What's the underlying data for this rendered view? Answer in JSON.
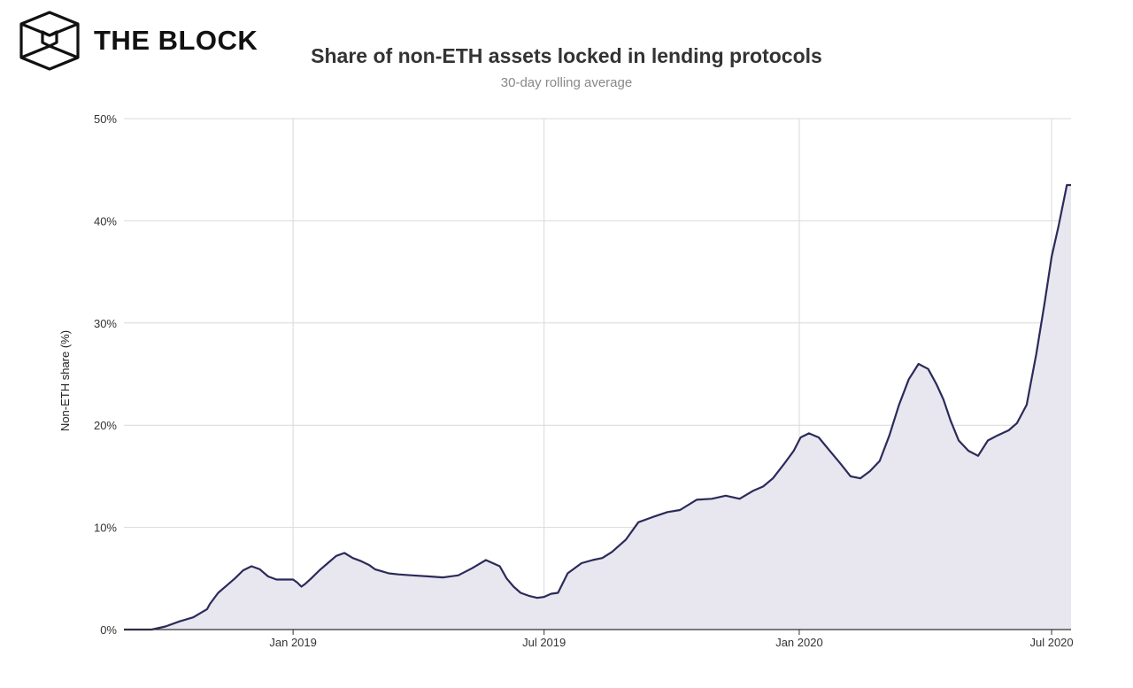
{
  "brand": {
    "name": "THE BLOCK"
  },
  "colors": {
    "line": "#2b2a5a",
    "area": "#e8e7ef",
    "grid": "#d9d9d9",
    "axis": "#333333"
  },
  "chart_data": {
    "type": "area",
    "title": "Share of non-ETH assets locked in lending protocols",
    "subtitle": "30-day rolling average",
    "ylabel": "Non-ETH share (%)",
    "xlabel": "",
    "ylim": [
      0,
      50
    ],
    "yticks": [
      0,
      10,
      20,
      30,
      40,
      50
    ],
    "ytick_labels": [
      "0%",
      "10%",
      "20%",
      "30%",
      "40%",
      "50%"
    ],
    "xticks": [
      "2019-01-01",
      "2019-07-01",
      "2020-01-01",
      "2020-07-01"
    ],
    "xtick_labels": [
      "Jan 2019",
      "Jul 2019",
      "Jan 2020",
      "Jul 2020"
    ],
    "xlim": [
      "2018-09-01",
      "2020-07-15"
    ],
    "grid": true,
    "legend": "none",
    "series": [
      {
        "x": [
          "2018-09-01",
          "2018-09-21",
          "2018-10-01",
          "2018-10-11",
          "2018-10-21",
          "2018-10-31",
          "2018-11-02",
          "2018-11-08",
          "2018-11-14",
          "2018-11-20",
          "2018-11-26",
          "2018-12-02",
          "2018-12-08",
          "2018-12-14",
          "2018-12-20",
          "2018-12-26",
          "2019-01-01",
          "2019-01-04",
          "2019-01-07",
          "2019-01-10",
          "2019-01-14",
          "2019-01-20",
          "2019-01-26",
          "2019-02-01",
          "2019-02-07",
          "2019-02-13",
          "2019-02-19",
          "2019-02-25",
          "2019-03-01",
          "2019-03-06",
          "2019-03-11",
          "2019-03-18",
          "2019-03-28",
          "2019-04-09",
          "2019-04-19",
          "2019-04-30",
          "2019-05-10",
          "2019-05-20",
          "2019-05-30",
          "2019-06-04",
          "2019-06-09",
          "2019-06-14",
          "2019-06-20",
          "2019-06-26",
          "2019-07-01",
          "2019-07-06",
          "2019-07-11",
          "2019-07-18",
          "2019-07-28",
          "2019-08-05",
          "2019-08-12",
          "2019-08-19",
          "2019-08-29",
          "2019-09-07",
          "2019-09-17",
          "2019-09-28",
          "2019-10-07",
          "2019-10-19",
          "2019-10-30",
          "2019-11-09",
          "2019-11-19",
          "2019-11-29",
          "2019-12-06",
          "2019-12-13",
          "2019-12-21",
          "2019-12-28",
          "2020-01-02",
          "2020-01-08",
          "2020-01-15",
          "2020-01-23",
          "2020-01-31",
          "2020-02-07",
          "2020-02-14",
          "2020-02-21",
          "2020-02-28",
          "2020-03-06",
          "2020-03-13",
          "2020-03-20",
          "2020-03-27",
          "2020-04-03",
          "2020-04-09",
          "2020-04-14",
          "2020-04-19",
          "2020-04-25",
          "2020-05-02",
          "2020-05-09",
          "2020-05-16",
          "2020-05-23",
          "2020-05-31",
          "2020-06-06",
          "2020-06-13",
          "2020-06-20",
          "2020-06-26",
          "2020-07-01",
          "2020-07-06",
          "2020-07-09",
          "2020-07-12",
          "2020-07-15"
        ],
        "y": [
          0,
          0,
          0.3,
          0.8,
          1.2,
          2.0,
          2.5,
          3.6,
          4.3,
          5.0,
          5.8,
          6.2,
          5.9,
          5.2,
          4.9,
          4.9,
          4.9,
          4.6,
          4.2,
          4.5,
          5.0,
          5.8,
          6.5,
          7.2,
          7.5,
          7.0,
          6.7,
          6.3,
          5.9,
          5.7,
          5.5,
          5.4,
          5.3,
          5.2,
          5.1,
          5.3,
          6.0,
          6.8,
          6.2,
          5.0,
          4.2,
          3.6,
          3.3,
          3.1,
          3.2,
          3.5,
          3.6,
          5.5,
          6.5,
          6.8,
          7.0,
          7.6,
          8.8,
          10.5,
          11.0,
          11.5,
          11.7,
          12.7,
          12.8,
          13.1,
          12.8,
          13.6,
          14.0,
          14.8,
          16.2,
          17.5,
          18.8,
          19.2,
          18.8,
          17.5,
          16.2,
          15.0,
          14.8,
          15.5,
          16.5,
          19.0,
          22.0,
          24.5,
          26.0,
          25.5,
          24.0,
          22.5,
          20.5,
          18.5,
          17.5,
          17.0,
          18.5,
          19.0,
          19.5,
          20.2,
          22.0,
          27.0,
          32.0,
          36.5,
          39.5,
          41.5,
          43.5,
          43.5
        ]
      }
    ]
  }
}
